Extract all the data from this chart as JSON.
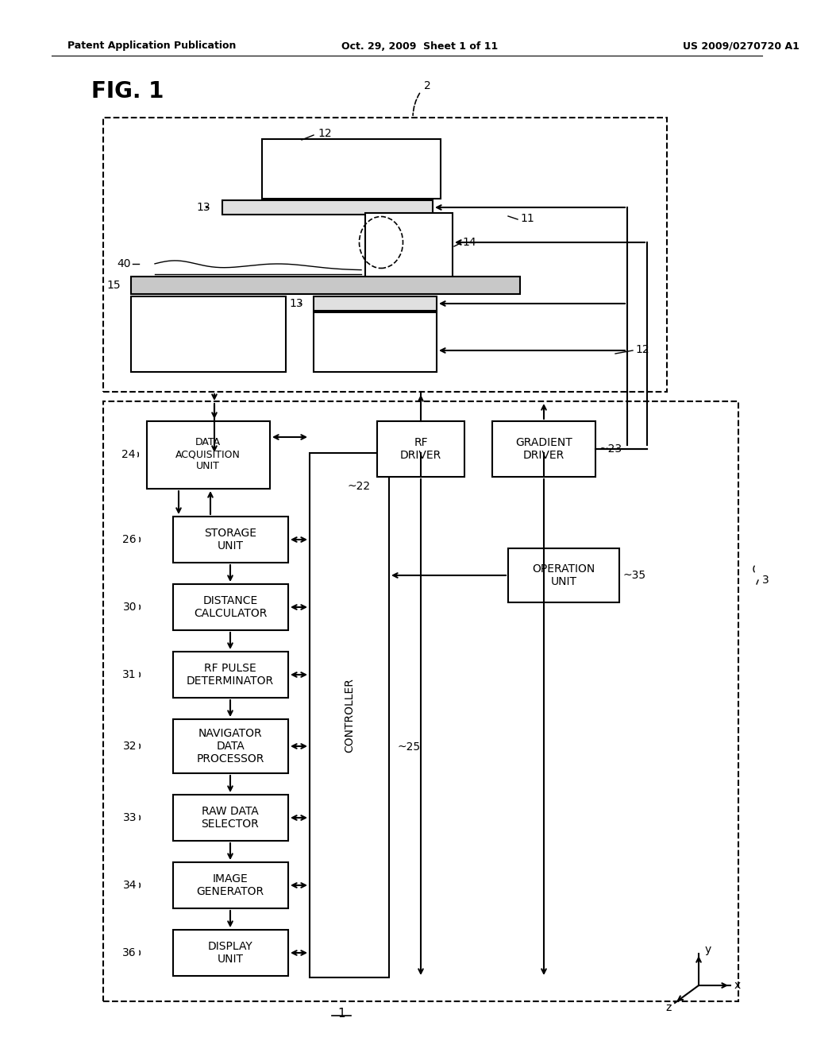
{
  "bg_color": "#ffffff",
  "header_left": "Patent Application Publication",
  "header_mid": "Oct. 29, 2009  Sheet 1 of 11",
  "header_right": "US 2009/0270720 A1",
  "box_labels": {
    "data_acq": "DATA\nACQUISITION\nUNIT",
    "rf_driver": "RF\nDRIVER",
    "gradient_driver": "GRADIENT\nDRIVER",
    "storage": "STORAGE\nUNIT",
    "distance_calc": "DISTANCE\nCALCULATOR",
    "rf_pulse_det": "RF PULSE\nDETERMINATOR",
    "nav_data": "NAVIGATOR\nDATA\nPROCESSOR",
    "raw_data": "RAW DATA\nSELECTOR",
    "image_gen": "IMAGE\nGENERATOR",
    "display": "DISPLAY\nUNIT",
    "operation": "OPERATION\nUNIT",
    "controller": "CONTROLLER"
  }
}
